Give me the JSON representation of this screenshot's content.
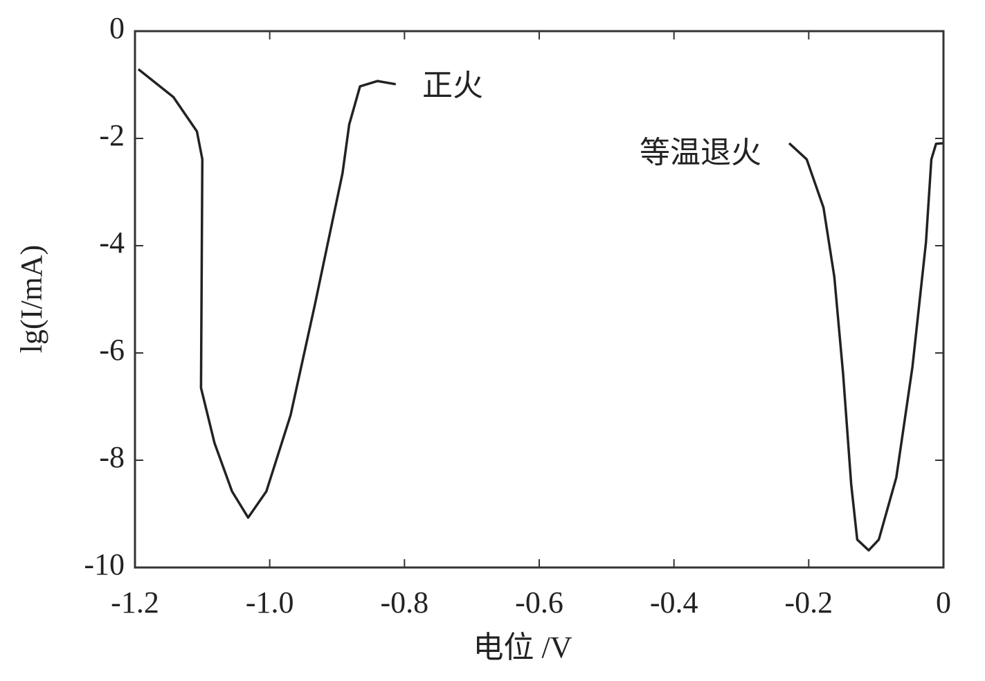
{
  "chart_data": {
    "type": "line",
    "x_label": "电位 /V",
    "y_label": "lg(I/mA)",
    "xlim": [
      -1.2,
      0
    ],
    "xticks": [
      -1.2,
      {
        "value": -1,
        "label": "-1.0"
      },
      -0.8,
      -0.6,
      -0.4,
      -0.2,
      0
    ],
    "ylim": [
      -10,
      0
    ],
    "yticks": [
      0,
      -2,
      -4,
      -6,
      -8,
      -10
    ],
    "grid": false,
    "series": [
      {
        "name": "正火",
        "color": "#222222",
        "x": [
          -1.195,
          -1.143,
          -1.108,
          -1.1,
          -1.102,
          -1.082,
          -1.056,
          -1.032,
          -1.005,
          -0.969,
          -0.933,
          -0.892,
          -0.882,
          -0.866,
          -0.84,
          -0.813
        ],
        "values": [
          -0.71,
          -1.23,
          -1.87,
          -2.39,
          -6.65,
          -7.68,
          -8.58,
          -9.07,
          -8.58,
          -7.16,
          -5.1,
          -2.65,
          -1.74,
          -1.03,
          -0.93,
          -0.99
        ]
      },
      {
        "name": "等温退火",
        "color": "#222222",
        "x": [
          -0.229,
          -0.203,
          -0.178,
          -0.162,
          -0.149,
          -0.137,
          -0.128,
          -0.111,
          -0.096,
          -0.07,
          -0.046,
          -0.026,
          -0.018,
          -0.011,
          -0.001
        ],
        "values": [
          -2.09,
          -2.39,
          -3.29,
          -4.58,
          -6.39,
          -8.45,
          -9.48,
          -9.68,
          -9.48,
          -8.32,
          -6.26,
          -3.94,
          -2.39,
          -2.1,
          -2.09
        ]
      }
    ]
  }
}
